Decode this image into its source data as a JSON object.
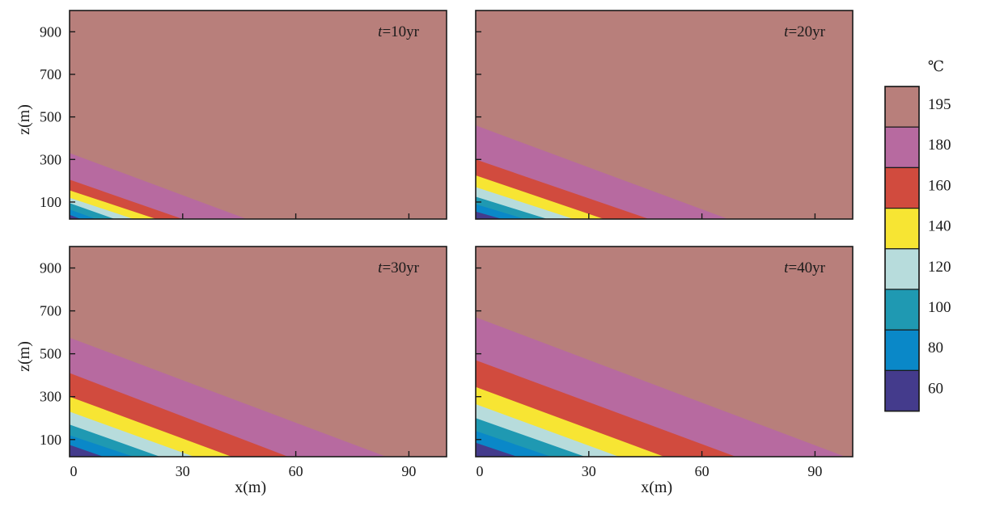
{
  "chart_data": {
    "type": "heatmap",
    "unit": "℃",
    "x_ticks": [
      0,
      30,
      60,
      90
    ],
    "z_ticks": [
      100,
      300,
      500,
      700,
      900
    ],
    "xlim": [
      0,
      100
    ],
    "zlim": [
      20,
      1000
    ],
    "xlabel": "x(m)",
    "ylabel": "z(m)",
    "colorbar": [
      {
        "value": 195,
        "color": "#b87f7b"
      },
      {
        "value": 180,
        "color": "#b76aa0"
      },
      {
        "value": 160,
        "color": "#d14b3e"
      },
      {
        "value": 140,
        "color": "#f7e533"
      },
      {
        "value": 120,
        "color": "#b7dcdc"
      },
      {
        "value": 100,
        "color": "#1f99b2"
      },
      {
        "value": 80,
        "color": "#0a88c8"
      },
      {
        "value": 60,
        "color": "#443b8c"
      }
    ],
    "panels": [
      {
        "label_var": "t",
        "label_rest": "=10yr",
        "show_xaxis": false,
        "show_yaxis": true,
        "contours": [
          {
            "value": 180,
            "z0": 330,
            "x_end": 47
          },
          {
            "value": 160,
            "z0": 205,
            "x_end": 30
          },
          {
            "value": 140,
            "z0": 155,
            "x_end": 23
          },
          {
            "value": 120,
            "z0": 120,
            "x_end": 17
          },
          {
            "value": 100,
            "z0": 95,
            "x_end": 12
          },
          {
            "value": 80,
            "z0": 65,
            "x_end": 7
          },
          {
            "value": 60,
            "z0": 40,
            "x_end": 3
          }
        ]
      },
      {
        "label_var": "t",
        "label_rest": "=20yr",
        "show_xaxis": false,
        "show_yaxis": false,
        "contours": [
          {
            "value": 180,
            "z0": 460,
            "x_end": 67
          },
          {
            "value": 160,
            "z0": 300,
            "x_end": 46
          },
          {
            "value": 140,
            "z0": 225,
            "x_end": 34
          },
          {
            "value": 120,
            "z0": 170,
            "x_end": 26
          },
          {
            "value": 100,
            "z0": 125,
            "x_end": 19
          },
          {
            "value": 80,
            "z0": 90,
            "x_end": 13
          },
          {
            "value": 60,
            "z0": 55,
            "x_end": 7
          }
        ]
      },
      {
        "label_var": "t",
        "label_rest": "=30yr",
        "show_xaxis": true,
        "show_yaxis": true,
        "contours": [
          {
            "value": 180,
            "z0": 575,
            "x_end": 84
          },
          {
            "value": 160,
            "z0": 410,
            "x_end": 58
          },
          {
            "value": 140,
            "z0": 300,
            "x_end": 43
          },
          {
            "value": 120,
            "z0": 230,
            "x_end": 33
          },
          {
            "value": 100,
            "z0": 170,
            "x_end": 24
          },
          {
            "value": 80,
            "z0": 120,
            "x_end": 17
          },
          {
            "value": 60,
            "z0": 75,
            "x_end": 9
          }
        ]
      },
      {
        "label_var": "t",
        "label_rest": "=40yr",
        "show_xaxis": true,
        "show_yaxis": false,
        "contours": [
          {
            "value": 180,
            "z0": 670,
            "x_end": 98
          },
          {
            "value": 160,
            "z0": 470,
            "x_end": 69
          },
          {
            "value": 140,
            "z0": 345,
            "x_end": 50
          },
          {
            "value": 120,
            "z0": 265,
            "x_end": 38
          },
          {
            "value": 100,
            "z0": 200,
            "x_end": 29
          },
          {
            "value": 80,
            "z0": 140,
            "x_end": 20
          },
          {
            "value": 60,
            "z0": 85,
            "x_end": 11
          }
        ]
      }
    ]
  }
}
